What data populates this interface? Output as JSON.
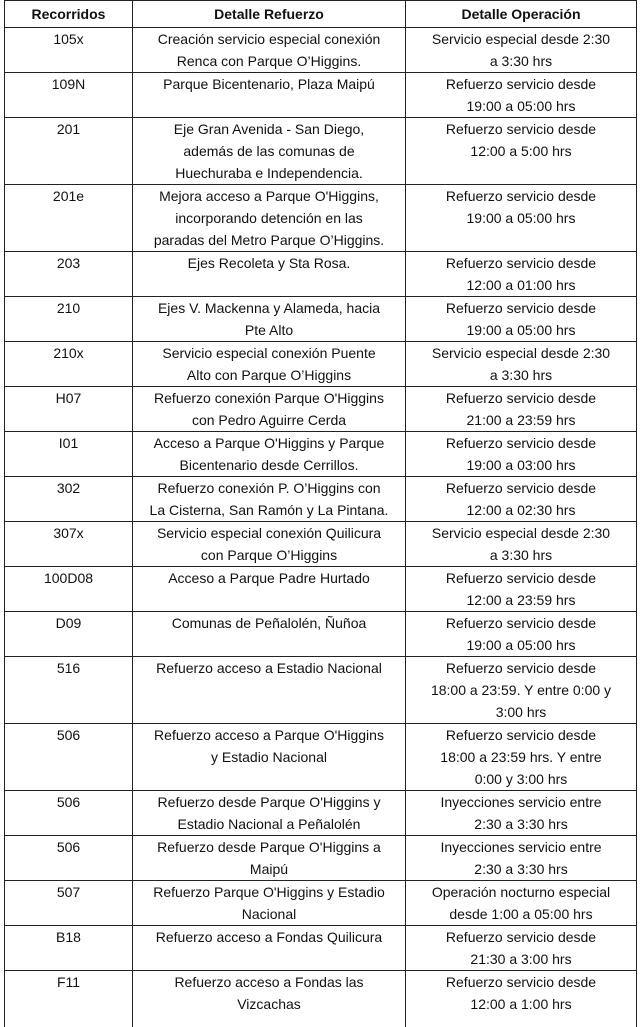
{
  "headers": [
    "Recorridos",
    "Detalle Refuerzo",
    "Detalle Operación"
  ],
  "rows": [
    {
      "route": "105x",
      "detail": "Creación servicio especial conexión\nRenca con Parque O’Higgins.",
      "operation": "Servicio especial desde 2:30\na 3:30 hrs"
    },
    {
      "route": "109N",
      "detail": "Parque Bicentenario, Plaza Maipú",
      "operation": "Refuerzo servicio desde\n19:00 a 05:00 hrs"
    },
    {
      "route": "201",
      "detail": "Eje Gran Avenida - San Diego,\nademás de las comunas de\nHuechuraba e Independencia.",
      "operation": "Refuerzo servicio desde\n12:00 a 5:00 hrs"
    },
    {
      "route": "201e",
      "detail": "Mejora acceso a Parque O'Higgins,\nincorporando detención en las\nparadas del Metro Parque O’Higgins.",
      "operation": "Refuerzo servicio desde\n19:00 a 05:00 hrs"
    },
    {
      "route": "203",
      "detail": "Ejes Recoleta y Sta Rosa.",
      "operation": "Refuerzo servicio desde\n12:00 a 01:00 hrs"
    },
    {
      "route": "210",
      "detail": "Ejes V. Mackenna y Alameda, hacia\nPte Alto",
      "operation": "Refuerzo servicio desde\n19:00 a 05:00 hrs"
    },
    {
      "route": "210x",
      "detail": "Servicio especial conexión Puente\nAlto con Parque O’Higgins",
      "operation": "Servicio especial desde 2:30\na 3:30 hrs"
    },
    {
      "route": "H07",
      "detail": "Refuerzo conexión Parque O'Higgins\ncon Pedro Aguirre Cerda",
      "operation": "Refuerzo servicio desde\n21:00 a 23:59 hrs"
    },
    {
      "route": "I01",
      "detail": "Acceso a Parque O'Higgins y Parque\nBicentenario desde Cerrillos.",
      "operation": "Refuerzo servicio desde\n19:00 a 03:00 hrs"
    },
    {
      "route": "302",
      "detail": "Refuerzo conexión P. O’Higgins con\nLa Cisterna, San Ramón y La Pintana.",
      "operation": "Refuerzo servicio desde\n12:00 a 02:30 hrs"
    },
    {
      "route": "307x",
      "detail": "Servicio especial conexión Quilicura\ncon Parque O’Higgins",
      "operation": "Servicio especial desde 2:30\na 3:30 hrs"
    },
    {
      "route": "100D08",
      "detail": "Acceso a Parque Padre Hurtado",
      "operation": "Refuerzo servicio desde\n12:00 a 23:59 hrs"
    },
    {
      "route": "D09",
      "detail": "Comunas de Peñalolén, Ñuñoa",
      "operation": "Refuerzo servicio desde\n19:00 a 05:00 hrs"
    },
    {
      "route": "516",
      "detail": "Refuerzo acceso a Estadio Nacional",
      "operation": "Refuerzo servicio desde\n18:00 a 23:59. Y entre 0:00 y\n3:00 hrs"
    },
    {
      "route": "506",
      "detail": "Refuerzo acceso a Parque O'Higgins\ny Estadio Nacional",
      "operation": "Refuerzo servicio desde\n18:00 a 23:59 hrs. Y entre\n0:00 y 3:00 hrs"
    },
    {
      "route": "506",
      "detail": "Refuerzo desde Parque O'Higgins y\nEstadio Nacional a Peñalolén",
      "operation": "Inyecciones servicio entre\n2:30 a 3:30 hrs"
    },
    {
      "route": "506",
      "detail": "Refuerzo desde Parque O'Higgins a\nMaipú",
      "operation": "Inyecciones servicio entre\n2:30 a 3:30 hrs"
    },
    {
      "route": "507",
      "detail": "Refuerzo Parque O'Higgins y Estadio\nNacional",
      "operation": "Operación nocturno especial\ndesde 1:00 a 05:00 hrs"
    },
    {
      "route": "B18",
      "detail": "Refuerzo acceso a Fondas Quilicura",
      "operation": "Refuerzo servicio desde\n21:30 a 3:00 hrs"
    },
    {
      "route": "F11",
      "detail": "Refuerzo acceso a Fondas           las\nVizcachas",
      "operation": "Refuerzo servicio desde\n12:00 a 1:00 hrs"
    }
  ]
}
